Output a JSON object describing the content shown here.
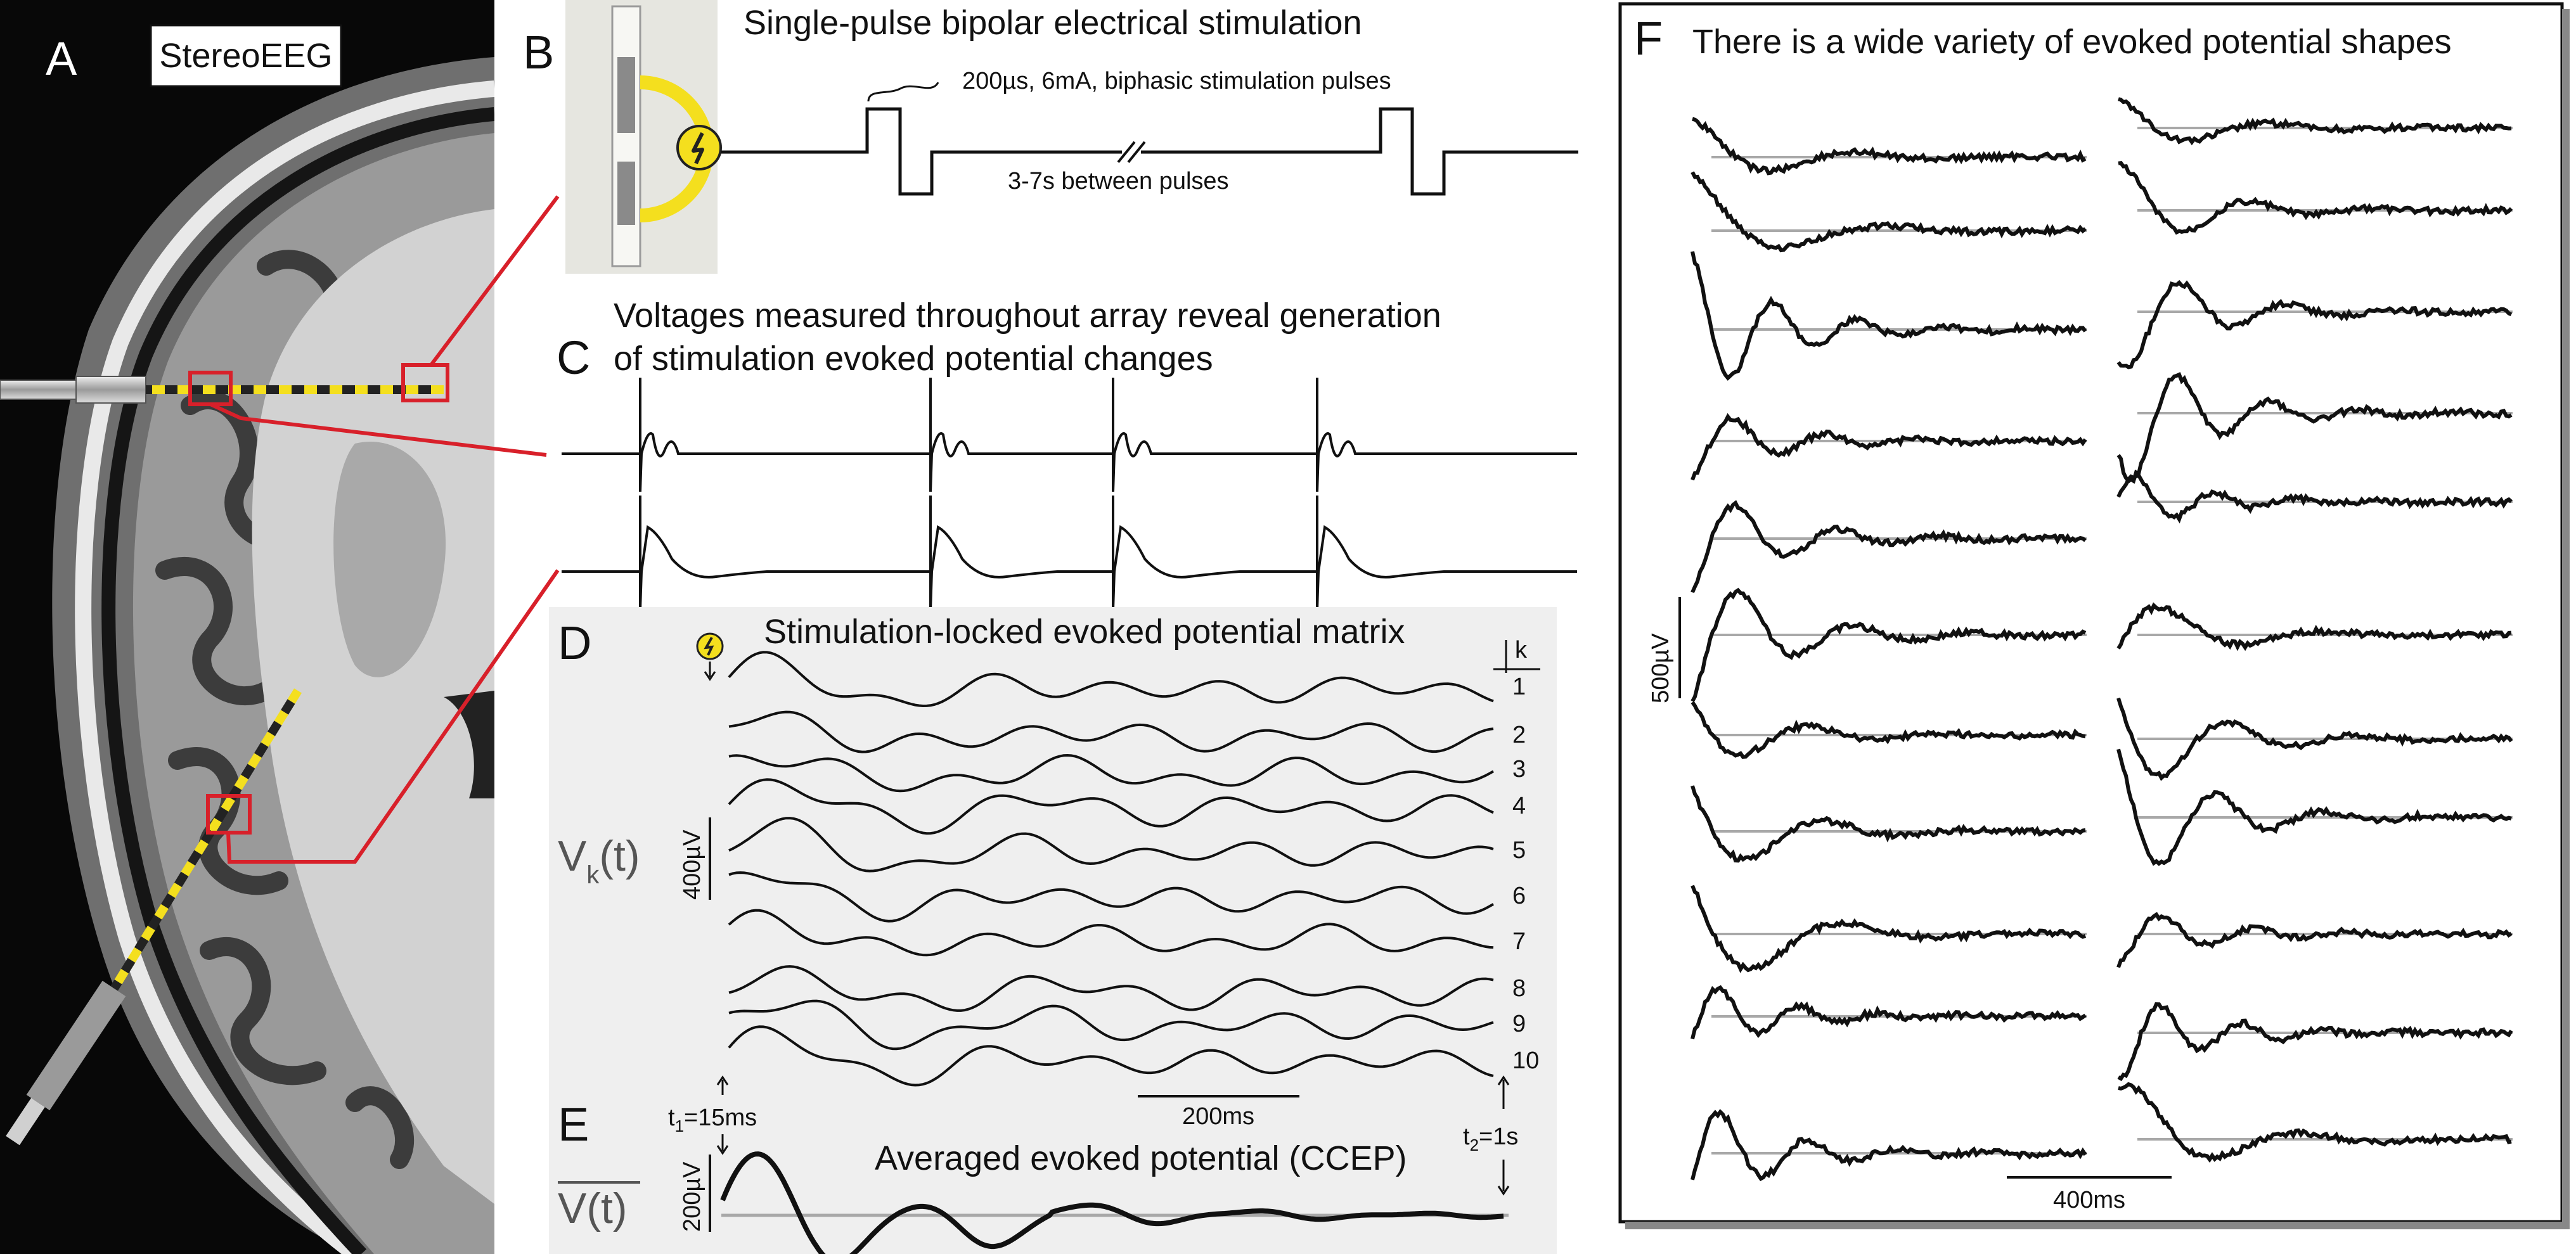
{
  "panels": {
    "A": {
      "letter": "A",
      "label": "StereoEEG"
    },
    "B": {
      "letter": "B",
      "title": "Single-pulse bipolar electrical stimulation",
      "pulse_note": "200µs, 6mA, biphasic stimulation pulses",
      "interval_note": "3-7s between pulses"
    },
    "C": {
      "letter": "C",
      "title_line1": "Voltages measured throughout array reveal generation",
      "title_line2": "of stimulation evoked potential changes"
    },
    "D": {
      "letter": "D",
      "title": "Stimulation-locked evoked potential matrix",
      "k_label": "k",
      "ylabel": "V",
      "ylabel_sub": "k",
      "ylabel_suffix": "(t)",
      "scale_y": "400µV",
      "scale_x": "200ms",
      "trial_labels": [
        "1",
        "2",
        "3",
        "4",
        "5",
        "6",
        "7",
        "8",
        "9",
        "10"
      ]
    },
    "E": {
      "letter": "E",
      "title": "Averaged evoked potential (CCEP)",
      "ylabel": "V(t)",
      "scale_y": "200µV",
      "t1_main": "t",
      "t1_sub": "1",
      "t1_val": "=15ms",
      "t2_main": "t",
      "t2_sub": "2",
      "t2_val": "=1s"
    },
    "F": {
      "letter": "F",
      "title": "There is a wide variety of evoked potential shapes",
      "scale_y": "500µV",
      "scale_x": "400ms"
    }
  },
  "colors": {
    "stim_yellow": "#f4df1e",
    "highlight_red": "#d8202a",
    "trace": "#111111",
    "baseline": "#a8a8a8",
    "panel_bg": "#efefef"
  }
}
